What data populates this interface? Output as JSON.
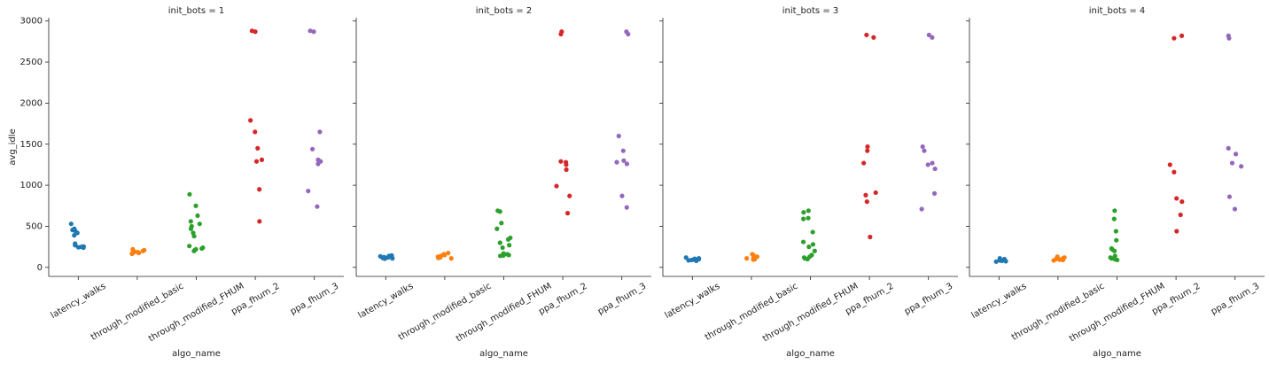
{
  "chart_data": [
    {
      "type": "strip",
      "title": "init_bots = 1",
      "x_label": "algo_name",
      "y_label": "avg_idle",
      "categories": [
        "latency_walks",
        "through_modified_basic",
        "through_modified_FHUM",
        "ppa_fhum_2",
        "ppa_fhum_3"
      ],
      "colors": [
        "#1f77b4",
        "#ff7f0e",
        "#2ca02c",
        "#d62728",
        "#9467bd"
      ],
      "values": [
        [
          530,
          470,
          455,
          445,
          420,
          390,
          290,
          270,
          255,
          250,
          245,
          240
        ],
        [
          220,
          210,
          200,
          195,
          190,
          185,
          180,
          175,
          170,
          165
        ],
        [
          890,
          750,
          630,
          560,
          530,
          500,
          470,
          420,
          380,
          260,
          240,
          230,
          220,
          210,
          200
        ],
        [
          2880,
          2870,
          1790,
          1650,
          1450,
          1310,
          1290,
          950,
          560
        ],
        [
          2880,
          2870,
          1650,
          1440,
          1310,
          1290,
          1260,
          930,
          740
        ]
      ],
      "ylim": [
        -110,
        3040
      ],
      "yticks": [
        0,
        500,
        1000,
        1500,
        2000,
        2500,
        3000
      ]
    },
    {
      "type": "strip",
      "title": "init_bots = 2",
      "x_label": "algo_name",
      "categories": [
        "latency_walks",
        "through_modified_basic",
        "through_modified_FHUM",
        "ppa_fhum_2",
        "ppa_fhum_3"
      ],
      "colors": [
        "#1f77b4",
        "#ff7f0e",
        "#2ca02c",
        "#d62728",
        "#9467bd"
      ],
      "values": [
        [
          145,
          140,
          135,
          130,
          125,
          120,
          115,
          110,
          105
        ],
        [
          175,
          160,
          150,
          140,
          130,
          120,
          115,
          110
        ],
        [
          690,
          680,
          540,
          470,
          360,
          340,
          300,
          270,
          240,
          170,
          160,
          150,
          145,
          140
        ],
        [
          2870,
          2840,
          1290,
          1280,
          1250,
          1190,
          990,
          870,
          660
        ],
        [
          2870,
          2840,
          1600,
          1420,
          1300,
          1280,
          1260,
          870,
          730
        ]
      ],
      "ylim": [
        -110,
        3040
      ],
      "yticks": [
        0,
        500,
        1000,
        1500,
        2000,
        2500,
        3000
      ]
    },
    {
      "type": "strip",
      "title": "init_bots = 3",
      "x_label": "algo_name",
      "categories": [
        "latency_walks",
        "through_modified_basic",
        "through_modified_FHUM",
        "ppa_fhum_2",
        "ppa_fhum_3"
      ],
      "colors": [
        "#1f77b4",
        "#ff7f0e",
        "#2ca02c",
        "#d62728",
        "#9467bd"
      ],
      "values": [
        [
          120,
          110,
          105,
          100,
          95,
          90,
          85,
          80
        ],
        [
          160,
          150,
          130,
          120,
          110,
          100,
          95
        ],
        [
          690,
          670,
          600,
          590,
          430,
          310,
          280,
          250,
          200,
          150,
          130,
          120,
          110,
          100
        ],
        [
          2830,
          2800,
          1470,
          1420,
          1270,
          910,
          880,
          800,
          370
        ],
        [
          2830,
          2800,
          1470,
          1420,
          1270,
          1250,
          1200,
          900,
          710
        ]
      ],
      "ylim": [
        -110,
        3040
      ],
      "yticks": [
        0,
        500,
        1000,
        1500,
        2000,
        2500,
        3000
      ]
    },
    {
      "type": "strip",
      "title": "init_bots = 4",
      "x_label": "algo_name",
      "categories": [
        "latency_walks",
        "through_modified_basic",
        "through_modified_FHUM",
        "ppa_fhum_2",
        "ppa_fhum_3"
      ],
      "colors": [
        "#1f77b4",
        "#ff7f0e",
        "#2ca02c",
        "#d62728",
        "#9467bd"
      ],
      "values": [
        [
          110,
          100,
          90,
          85,
          80,
          75,
          70
        ],
        [
          130,
          120,
          110,
          100,
          95,
          90,
          85
        ],
        [
          690,
          590,
          440,
          330,
          230,
          220,
          200,
          140,
          120,
          110,
          100,
          90
        ],
        [
          2820,
          2790,
          1250,
          1160,
          840,
          800,
          640,
          440
        ],
        [
          2820,
          2790,
          1450,
          1380,
          1270,
          1230,
          860,
          710
        ]
      ],
      "ylim": [
        -110,
        3040
      ],
      "yticks": [
        0,
        500,
        1000,
        1500,
        2000,
        2500,
        3000
      ]
    }
  ]
}
